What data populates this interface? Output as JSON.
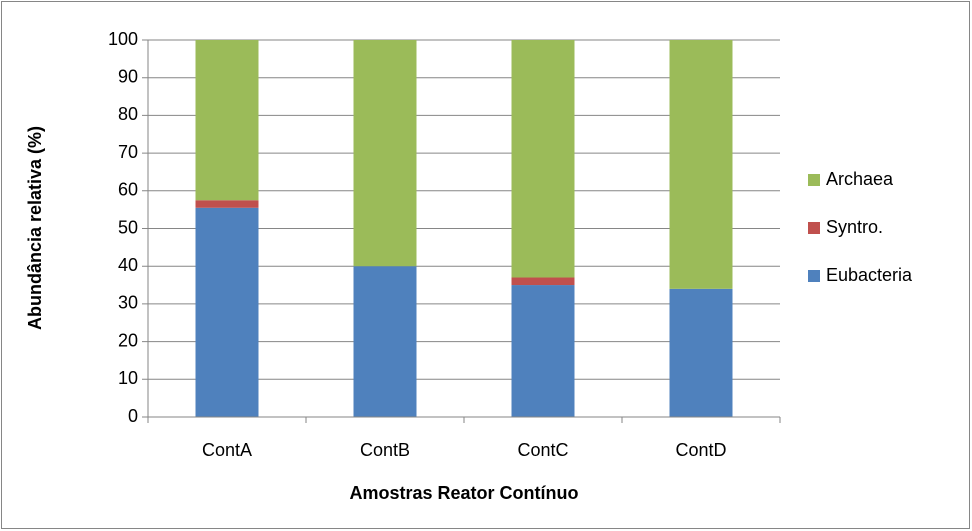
{
  "chart_data": {
    "type": "stacked_bar",
    "x_label": "Amostras Reator Contínuo",
    "y_label": "Abundância relativa (%)",
    "categories": [
      "ContA",
      "ContB",
      "ContC",
      "ContD"
    ],
    "series": [
      {
        "name": "Eubacteria",
        "color": "#4f81bd",
        "values": [
          55.5,
          40,
          35,
          34
        ]
      },
      {
        "name": "Syntro.",
        "color": "#c0504d",
        "values": [
          2,
          0,
          2,
          0
        ]
      },
      {
        "name": "Archaea",
        "color": "#9bbb59",
        "values": [
          42.5,
          60,
          63,
          66
        ]
      }
    ],
    "ylim": [
      0,
      100
    ],
    "yticks": [
      0,
      10,
      20,
      30,
      40,
      50,
      60,
      70,
      80,
      90,
      100
    ],
    "grid": true
  }
}
